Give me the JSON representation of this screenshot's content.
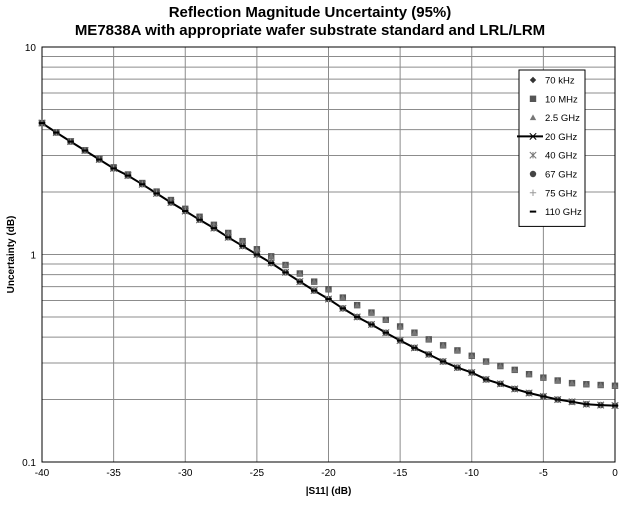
{
  "chart_data": {
    "type": "line",
    "title": "Reflection Magnitude Uncertainty (95%)",
    "subtitle": "ME7838A with appropriate wafer substrate standard and LRL/LRM",
    "xlabel": "|S11| (dB)",
    "ylabel": "Uncertainty (dB)",
    "xlim": [
      -40,
      0
    ],
    "ylim": [
      0.1,
      10
    ],
    "yscale": "log",
    "grid": true,
    "legend_position": "top-right",
    "x_ticks": [
      "-40",
      "-35",
      "-30",
      "-25",
      "-20",
      "-15",
      "-10",
      "-5",
      "0"
    ],
    "y_ticks": [
      "0.1",
      "1",
      "10"
    ],
    "x": [
      -40,
      -39,
      -38,
      -37,
      -36,
      -35,
      -34,
      -33,
      -32,
      -31,
      -30,
      -29,
      -28,
      -27,
      -26,
      -25,
      -24,
      -23,
      -22,
      -21,
      -20,
      -19,
      -18,
      -17,
      -16,
      -15,
      -14,
      -13,
      -12,
      -11,
      -10,
      -9,
      -8,
      -7,
      -6,
      -5,
      -4,
      -3,
      -2,
      -1,
      0
    ],
    "series": [
      {
        "name": "70 kHz",
        "marker": "diamond",
        "color": "#333333",
        "values": [
          4.3,
          3.87,
          3.5,
          3.17,
          2.87,
          2.6,
          2.4,
          2.18,
          1.97,
          1.78,
          1.62,
          1.47,
          1.34,
          1.21,
          1.1,
          1.0,
          0.91,
          0.82,
          0.74,
          0.67,
          0.61,
          0.55,
          0.5,
          0.46,
          0.42,
          0.385,
          0.355,
          0.33,
          0.305,
          0.285,
          0.27,
          0.25,
          0.238,
          0.225,
          0.215,
          0.207,
          0.2,
          0.195,
          0.19,
          0.188,
          0.187
        ]
      },
      {
        "name": "10 MHz",
        "marker": "square",
        "color": "#555555",
        "values": [
          4.3,
          3.88,
          3.51,
          3.18,
          2.89,
          2.63,
          2.43,
          2.21,
          2.01,
          1.83,
          1.66,
          1.52,
          1.39,
          1.27,
          1.16,
          1.06,
          0.98,
          0.89,
          0.81,
          0.74,
          0.68,
          0.62,
          0.57,
          0.525,
          0.485,
          0.45,
          0.42,
          0.39,
          0.365,
          0.345,
          0.325,
          0.305,
          0.29,
          0.278,
          0.265,
          0.255,
          0.247,
          0.24,
          0.237,
          0.235,
          0.233
        ]
      },
      {
        "name": "2.5 GHz",
        "marker": "triangle",
        "color": "#777777",
        "values": [
          4.3,
          3.88,
          3.51,
          3.18,
          2.89,
          2.63,
          2.43,
          2.21,
          2.01,
          1.83,
          1.66,
          1.52,
          1.39,
          1.27,
          1.16,
          1.06,
          0.98,
          0.89,
          0.81,
          0.74,
          0.68,
          0.62,
          0.57,
          0.525,
          0.485,
          0.45,
          0.42,
          0.39,
          0.365,
          0.345,
          0.325,
          0.305,
          0.29,
          0.278,
          0.265,
          0.255,
          0.247,
          0.24,
          0.237,
          0.235,
          0.233
        ]
      },
      {
        "name": "20 GHz",
        "marker": "line-x",
        "color": "#000000",
        "values": [
          4.3,
          3.87,
          3.5,
          3.17,
          2.87,
          2.6,
          2.4,
          2.18,
          1.97,
          1.78,
          1.62,
          1.47,
          1.34,
          1.21,
          1.1,
          1.0,
          0.91,
          0.82,
          0.74,
          0.67,
          0.61,
          0.55,
          0.5,
          0.46,
          0.42,
          0.385,
          0.355,
          0.33,
          0.305,
          0.285,
          0.27,
          0.25,
          0.238,
          0.225,
          0.215,
          0.207,
          0.2,
          0.195,
          0.19,
          0.188,
          0.187
        ]
      },
      {
        "name": "40 GHz",
        "marker": "asterisk",
        "color": "#777777",
        "values": [
          4.3,
          3.87,
          3.5,
          3.17,
          2.87,
          2.6,
          2.4,
          2.18,
          1.97,
          1.78,
          1.62,
          1.47,
          1.34,
          1.21,
          1.1,
          1.0,
          0.91,
          0.82,
          0.74,
          0.67,
          0.61,
          0.55,
          0.5,
          0.46,
          0.42,
          0.385,
          0.355,
          0.33,
          0.305,
          0.285,
          0.27,
          0.25,
          0.238,
          0.225,
          0.215,
          0.207,
          0.2,
          0.195,
          0.19,
          0.188,
          0.187
        ]
      },
      {
        "name": "67 GHz",
        "marker": "circle",
        "color": "#444444",
        "values": [
          4.3,
          3.87,
          3.5,
          3.17,
          2.87,
          2.6,
          2.4,
          2.18,
          1.97,
          1.78,
          1.62,
          1.47,
          1.34,
          1.21,
          1.1,
          1.0,
          0.91,
          0.82,
          0.74,
          0.67,
          0.61,
          0.55,
          0.5,
          0.46,
          0.42,
          0.385,
          0.355,
          0.33,
          0.305,
          0.285,
          0.27,
          0.25,
          0.238,
          0.225,
          0.215,
          0.207,
          0.2,
          0.195,
          0.19,
          0.188,
          0.187
        ]
      },
      {
        "name": "75 GHz",
        "marker": "plus",
        "color": "#999999",
        "values": [
          4.3,
          3.87,
          3.5,
          3.17,
          2.87,
          2.6,
          2.4,
          2.18,
          1.97,
          1.78,
          1.62,
          1.47,
          1.34,
          1.21,
          1.1,
          1.0,
          0.91,
          0.82,
          0.74,
          0.67,
          0.61,
          0.55,
          0.5,
          0.46,
          0.42,
          0.385,
          0.355,
          0.33,
          0.305,
          0.285,
          0.27,
          0.25,
          0.238,
          0.225,
          0.215,
          0.207,
          0.2,
          0.195,
          0.19,
          0.188,
          0.187
        ]
      },
      {
        "name": "110 GHz",
        "marker": "dash",
        "color": "#000000",
        "values": [
          4.3,
          3.87,
          3.5,
          3.17,
          2.87,
          2.6,
          2.4,
          2.18,
          1.97,
          1.78,
          1.62,
          1.47,
          1.34,
          1.21,
          1.1,
          1.0,
          0.91,
          0.82,
          0.74,
          0.67,
          0.61,
          0.55,
          0.5,
          0.46,
          0.42,
          0.385,
          0.355,
          0.33,
          0.305,
          0.285,
          0.27,
          0.25,
          0.238,
          0.225,
          0.215,
          0.207,
          0.2,
          0.195,
          0.19,
          0.188,
          0.187
        ]
      }
    ]
  }
}
